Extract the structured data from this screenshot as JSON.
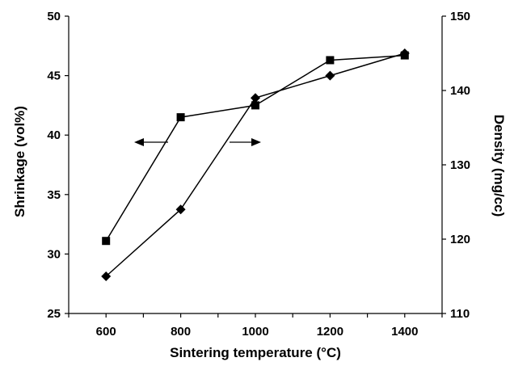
{
  "chart_data": {
    "type": "line",
    "xlabel": "Sintering temperature (°C)",
    "ylabel_left": "Shrinkage (vol%)",
    "ylabel_right": "Density (mg/cc)",
    "x_range": [
      500,
      1500
    ],
    "x_ticks": [
      600,
      800,
      1000,
      1200,
      1400
    ],
    "y_left_range": [
      25,
      50
    ],
    "y_left_ticks": [
      25,
      30,
      35,
      40,
      45,
      50
    ],
    "y_right_range": [
      110,
      150
    ],
    "y_right_ticks": [
      110,
      120,
      130,
      140,
      150
    ],
    "grid": false,
    "legend": "none",
    "annotations": [
      {
        "type": "arrow",
        "direction": "left",
        "meaning": "square series uses left axis"
      },
      {
        "type": "arrow",
        "direction": "right",
        "meaning": "diamond series uses right axis"
      }
    ],
    "series": [
      {
        "marker": "square",
        "axis": "left",
        "x": [
          600,
          800,
          1000,
          1200,
          1400
        ],
        "values": [
          31.1,
          41.5,
          42.5,
          46.3,
          46.7
        ]
      },
      {
        "marker": "diamond",
        "axis": "right",
        "x": [
          600,
          800,
          1000,
          1200,
          1400
        ],
        "values": [
          115,
          124,
          139,
          142,
          145
        ]
      }
    ]
  }
}
